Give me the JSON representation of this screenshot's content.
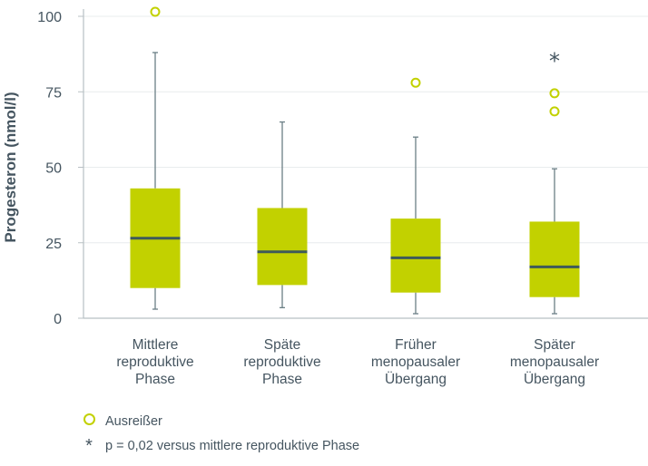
{
  "chart_data": {
    "type": "box",
    "ylabel": "Progesteron (nmol/l)",
    "ylim": [
      0,
      100
    ],
    "yticks": [
      "0",
      "25",
      "50",
      "75",
      "100"
    ],
    "yticks_values": [
      0,
      25,
      50,
      75,
      100
    ],
    "grid": true,
    "colors": {
      "box": "#c2d100",
      "median": "#3e5a5a",
      "whisker": "#6b7f86",
      "axis": "#b8c0c4",
      "grid": "#e8ecee",
      "text": "#455560"
    },
    "groups": [
      {
        "label": [
          "Mittlere",
          "reproduktive",
          "Phase"
        ],
        "min": 3,
        "q1": 10,
        "median": 26.5,
        "q3": 43,
        "max": 88,
        "outliers": [
          101.5
        ],
        "star": null
      },
      {
        "label": [
          "Späte",
          "reproduktive",
          "Phase"
        ],
        "min": 3.5,
        "q1": 11,
        "median": 22,
        "q3": 36.5,
        "max": 65,
        "outliers": [],
        "star": null
      },
      {
        "label": [
          "Früher",
          "menopausaler",
          "Übergang"
        ],
        "min": 1.5,
        "q1": 8.5,
        "median": 20,
        "q3": 33,
        "max": 60,
        "outliers": [
          78
        ],
        "star": null
      },
      {
        "label": [
          "Später",
          "menopausaler",
          "Übergang"
        ],
        "min": 1.5,
        "q1": 7,
        "median": 17,
        "q3": 32,
        "max": 49.5,
        "outliers": [
          74.5,
          68.5
        ],
        "star": 86
      }
    ]
  },
  "legend": {
    "outlier_label": "Ausreißer",
    "star_symbol": "*",
    "star_label": "p = 0,02 versus mittlere reproduktive Phase"
  }
}
